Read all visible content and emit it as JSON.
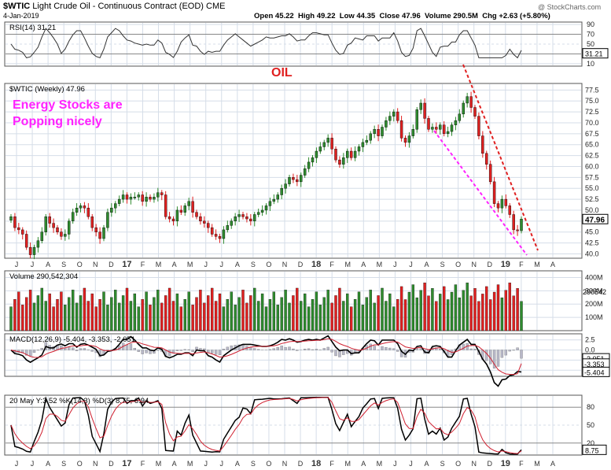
{
  "header": {
    "symbol": "$WTIC",
    "name": "Light Crude Oil - Continuous Contract (EOD)",
    "exchange": "CME",
    "date": "4-Jan-2019",
    "ohlc": "Open 45.22  High 49.22  Low 44.35  Close 47.96  Volume 290.5M  Chg +2.63 (+5.80%)",
    "watermark": "@ StockCharts.com"
  },
  "panels": {
    "rsi_label": "RSI(14) 31.21",
    "price_label": "$WTIC (Weekly) 47.96",
    "volume_label": "Volume 290,542,304",
    "macd_label": "MACD(12,26,9) -5.404, -3.353, -2.051",
    "stoch_label": "20 May Y:3.52 %K(14,3) %D(3) 8.75, 6.94"
  },
  "annotations": {
    "oil": "OIL",
    "energy_line1": "Energy Stocks are",
    "energy_line2": "Popping nicely"
  },
  "colors": {
    "up": "#2e8b2e",
    "down": "#e02020",
    "annotation_pink": "#ff22ff",
    "trend_red": "#e02020",
    "grid": "#d5dde8",
    "panel_border": "#555555"
  },
  "chart_data": {
    "type": "candlestick",
    "months": [
      "J",
      "J",
      "A",
      "S",
      "O",
      "N",
      "D",
      "17",
      "F",
      "M",
      "A",
      "M",
      "J",
      "J",
      "A",
      "S",
      "O",
      "N",
      "D",
      "18",
      "F",
      "M",
      "A",
      "M",
      "J",
      "J",
      "A",
      "S",
      "O",
      "N",
      "D",
      "19",
      "F",
      "M",
      "A"
    ],
    "price_axis": {
      "ticks": [
        40.0,
        42.5,
        45.0,
        47.5,
        50.0,
        52.5,
        55.0,
        57.5,
        60.0,
        62.5,
        65.0,
        67.5,
        70.0,
        72.5,
        75.0,
        77.5
      ],
      "ylim": [
        39,
        79
      ],
      "last": "47.96"
    },
    "price_close": [
      48.5,
      46.0,
      45.5,
      44.5,
      41.5,
      39.8,
      41.5,
      43.0,
      45.0,
      48.5,
      47.0,
      46.0,
      45.0,
      44.0,
      44.5,
      47.5,
      49.5,
      50.5,
      51.0,
      50.5,
      48.5,
      46.0,
      45.0,
      43.5,
      46.0,
      49.5,
      50.5,
      51.5,
      52.5,
      53.5,
      52.5,
      53.0,
      53.0,
      53.5,
      52.0,
      53.0,
      52.5,
      53.0,
      54.0,
      53.5,
      48.5,
      48.0,
      47.5,
      50.0,
      49.5,
      51.0,
      52.0,
      49.5,
      48.5,
      47.5,
      47.0,
      46.0,
      44.5,
      44.0,
      43.5,
      45.5,
      46.5,
      47.5,
      48.5,
      49.0,
      48.5,
      48.0,
      47.5,
      49.0,
      49.5,
      50.0,
      51.0,
      52.0,
      52.5,
      53.5,
      55.0,
      56.0,
      57.5,
      57.0,
      56.5,
      58.0,
      59.5,
      61.0,
      62.0,
      63.5,
      64.5,
      65.5,
      66.5,
      64.0,
      61.5,
      60.5,
      62.0,
      63.5,
      62.0,
      63.5,
      64.5,
      65.5,
      66.0,
      67.5,
      68.5,
      67.0,
      69.0,
      70.5,
      71.5,
      72.5,
      70.5,
      66.5,
      65.5,
      67.0,
      68.5,
      73.0,
      74.5,
      71.0,
      68.5,
      69.0,
      68.5,
      69.5,
      67.5,
      68.0,
      69.5,
      70.5,
      72.0,
      74.5,
      76.0,
      73.5,
      71.5,
      67.0,
      63.0,
      60.5,
      56.5,
      51.5,
      50.5,
      52.5,
      51.0,
      49.0,
      45.5,
      45.3,
      47.96
    ],
    "rsi": {
      "value": 31.21,
      "levels": [
        70,
        30
      ],
      "ticks": [
        10,
        30,
        50,
        70,
        90
      ],
      "ylim": [
        5,
        95
      ]
    },
    "volume": {
      "ticks": [
        "100M",
        "200M",
        "300M",
        "400M"
      ],
      "last": "290542304",
      "ylim_millions": [
        0,
        450
      ]
    },
    "macd": {
      "macd": -5.404,
      "signal": -3.353,
      "histogram": -2.051,
      "ticks": [
        -5.0,
        -2.5,
        0.0,
        2.5
      ],
      "ylim": [
        -6.5,
        4.0
      ]
    },
    "stochastic": {
      "k": 8.75,
      "d": 6.94,
      "ticks": [
        20,
        50,
        80
      ],
      "levels": [
        20,
        80
      ],
      "ylim": [
        0,
        100
      ]
    }
  }
}
